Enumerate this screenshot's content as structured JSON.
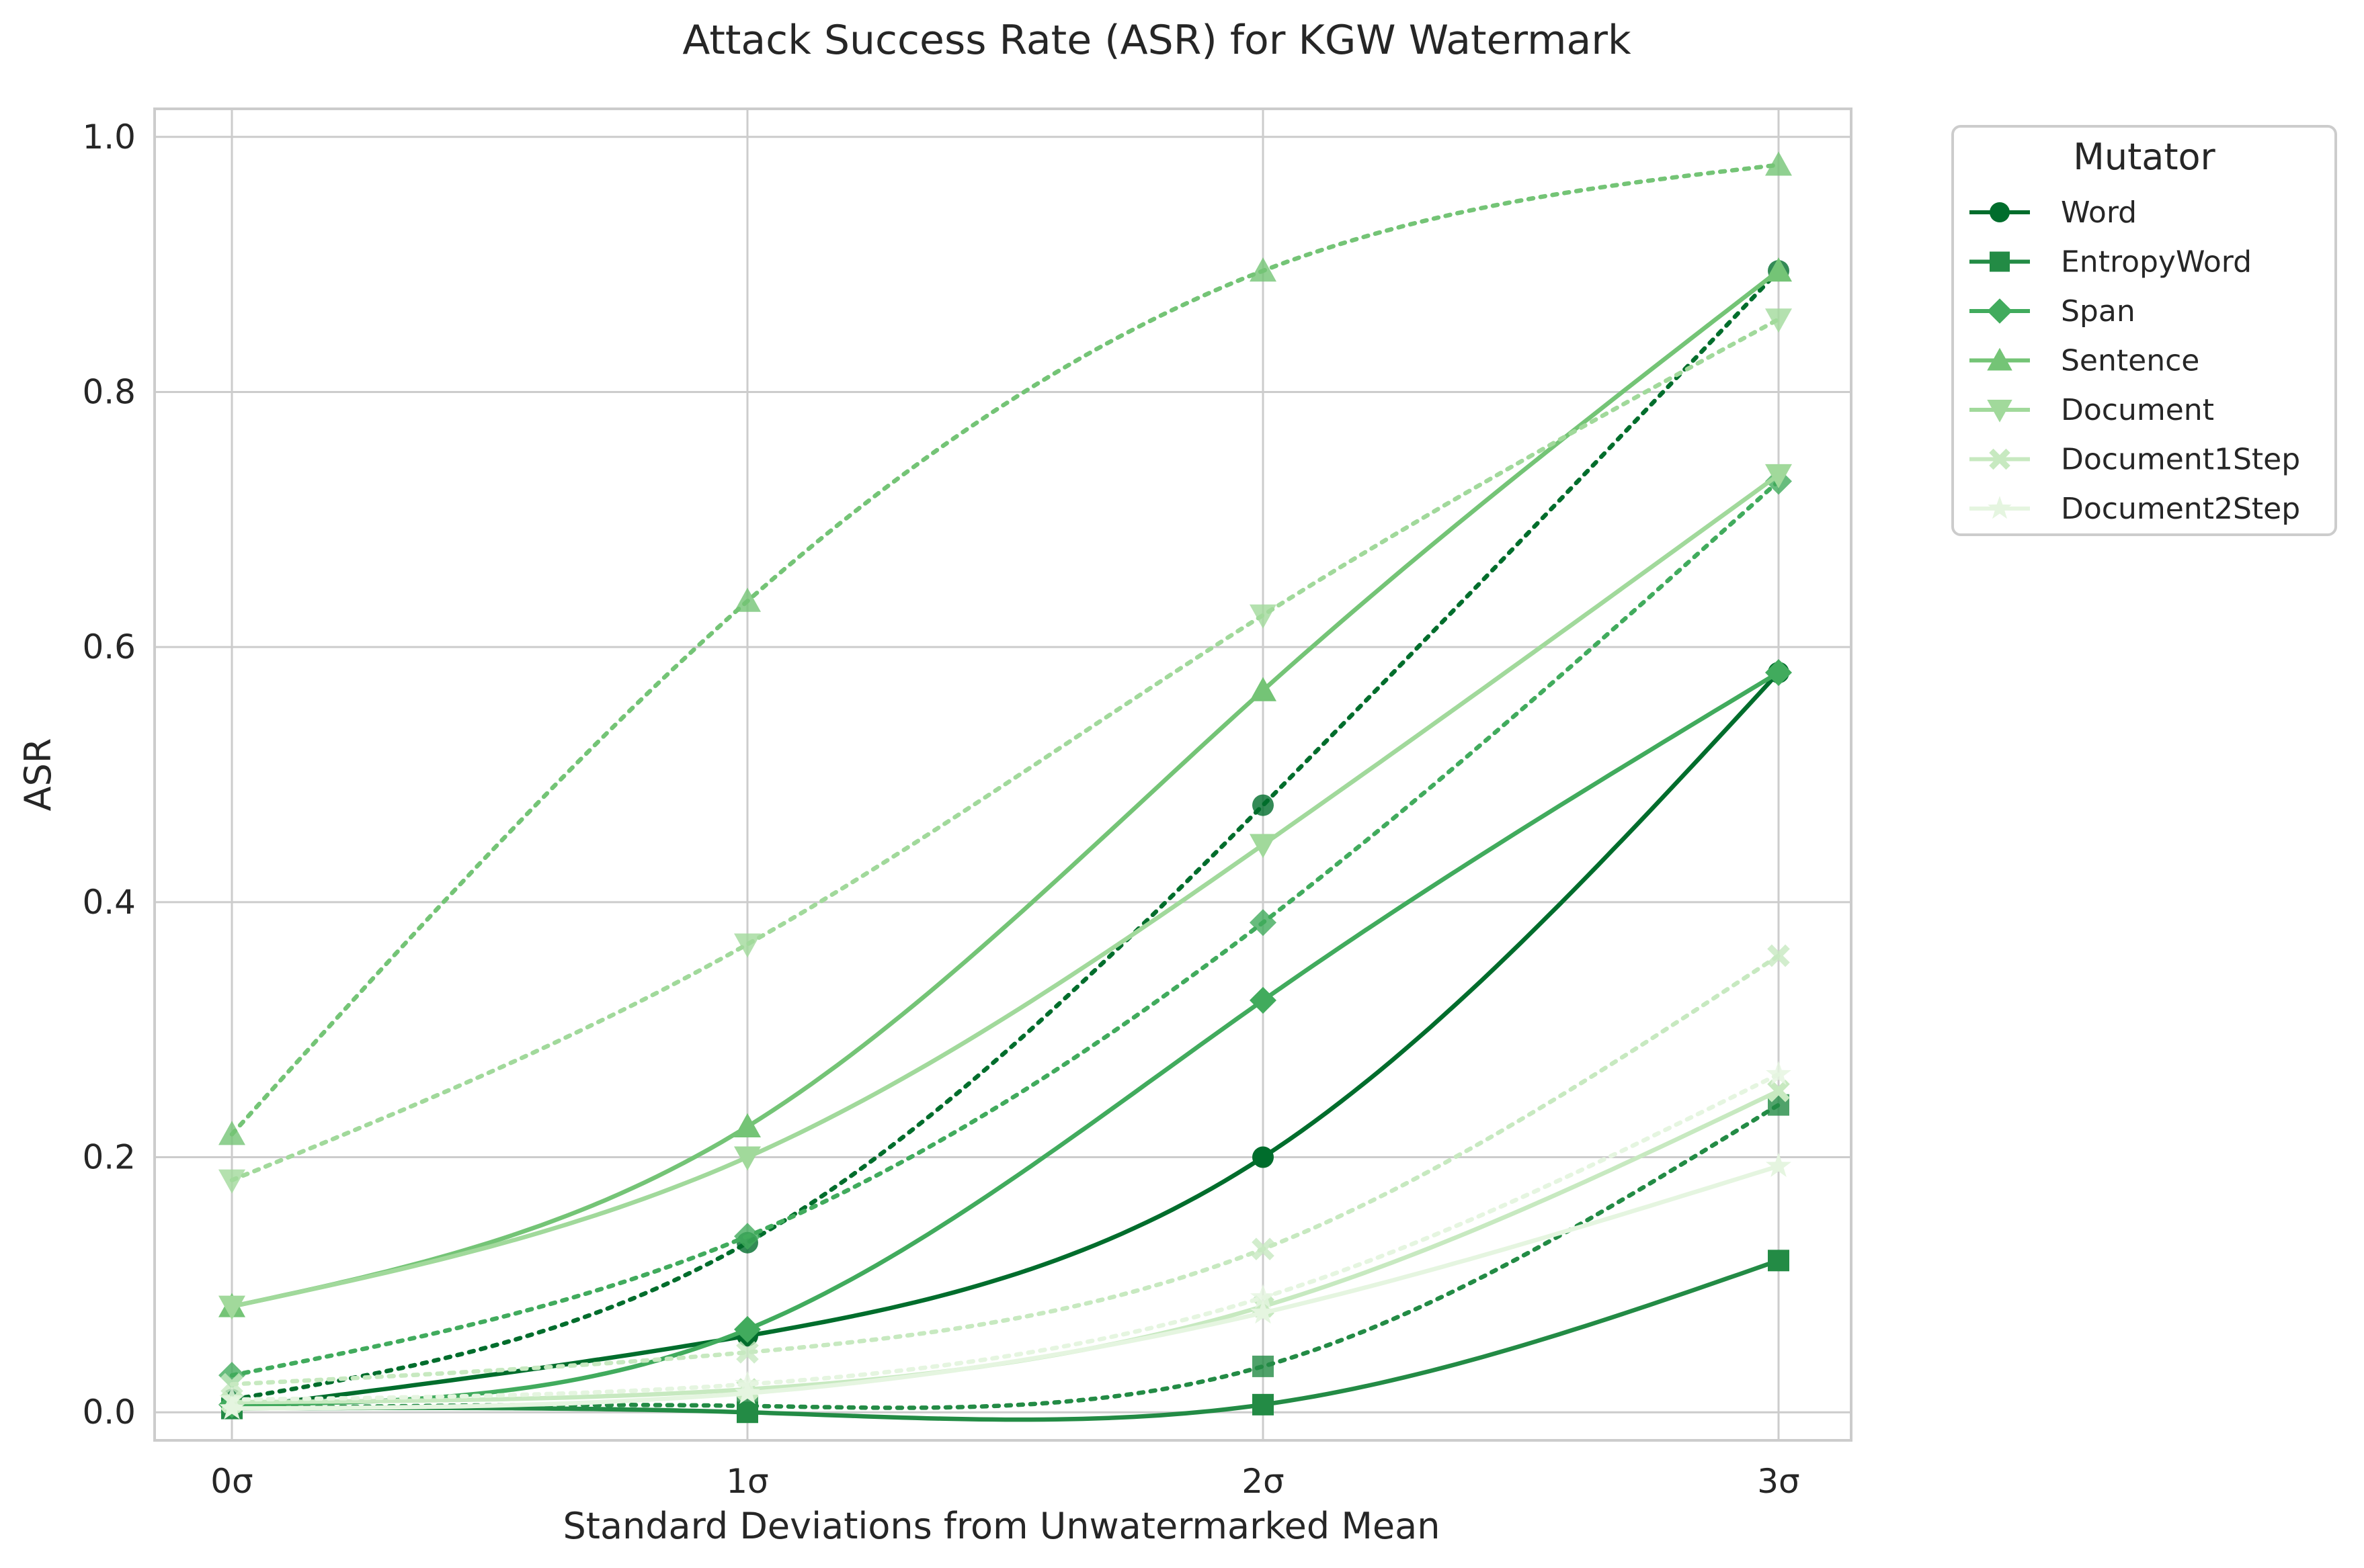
{
  "chart_data": {
    "type": "line",
    "title": "Attack Success Rate (ASR) for KGW Watermark",
    "xlabel": "Standard Deviations from Unwatermarked Mean",
    "ylabel": "ASR",
    "categories": [
      "0σ",
      "1σ",
      "2σ",
      "3σ"
    ],
    "x": [
      0,
      1,
      2,
      3
    ],
    "ylim": [
      -0.022,
      1.022
    ],
    "yticks": [
      "0.0",
      "0.2",
      "0.4",
      "0.6",
      "0.8",
      "1.0"
    ],
    "ytick_values": [
      0,
      0.2,
      0.4,
      0.6,
      0.8,
      1.0
    ],
    "grid": true,
    "legend": {
      "title": "Mutator",
      "placement": "outside upper right"
    },
    "line_styles": {
      "solid": "first group",
      "dotted": "second group"
    },
    "series": [
      {
        "name": "Word",
        "color": "#006d2c",
        "marker": "circle",
        "solid": [
          0.003,
          0.06,
          0.2,
          0.58
        ],
        "dotted": [
          0.01,
          0.133,
          0.476,
          0.895
        ]
      },
      {
        "name": "EntropyWord",
        "color": "#238b45",
        "marker": "square",
        "solid": [
          0.003,
          0.0,
          0.006,
          0.119
        ],
        "dotted": [
          0.003,
          0.005,
          0.036,
          0.241
        ]
      },
      {
        "name": "Span",
        "color": "#41ab5d",
        "marker": "diamond",
        "solid": [
          0.006,
          0.065,
          0.323,
          0.58
        ],
        "dotted": [
          0.029,
          0.138,
          0.384,
          0.73
        ]
      },
      {
        "name": "Sentence",
        "color": "#74c476",
        "marker": "triangle-up",
        "solid": [
          0.083,
          0.224,
          0.566,
          0.895
        ],
        "dotted": [
          0.218,
          0.636,
          0.895,
          0.978
        ]
      },
      {
        "name": "Document",
        "color": "#a1d99b",
        "marker": "triangle-down",
        "solid": [
          0.083,
          0.2,
          0.445,
          0.735
        ],
        "dotted": [
          0.182,
          0.367,
          0.625,
          0.857
        ]
      },
      {
        "name": "Document1Step",
        "color": "#c7e9c0",
        "marker": "x-filled",
        "solid": [
          0.008,
          0.018,
          0.083,
          0.252
        ],
        "dotted": [
          0.022,
          0.047,
          0.128,
          0.358
        ]
      },
      {
        "name": "Document2Step",
        "color": "#e5f5e0",
        "marker": "star",
        "solid": [
          0.003,
          0.015,
          0.078,
          0.193
        ],
        "dotted": [
          0.01,
          0.022,
          0.09,
          0.265
        ]
      }
    ]
  }
}
